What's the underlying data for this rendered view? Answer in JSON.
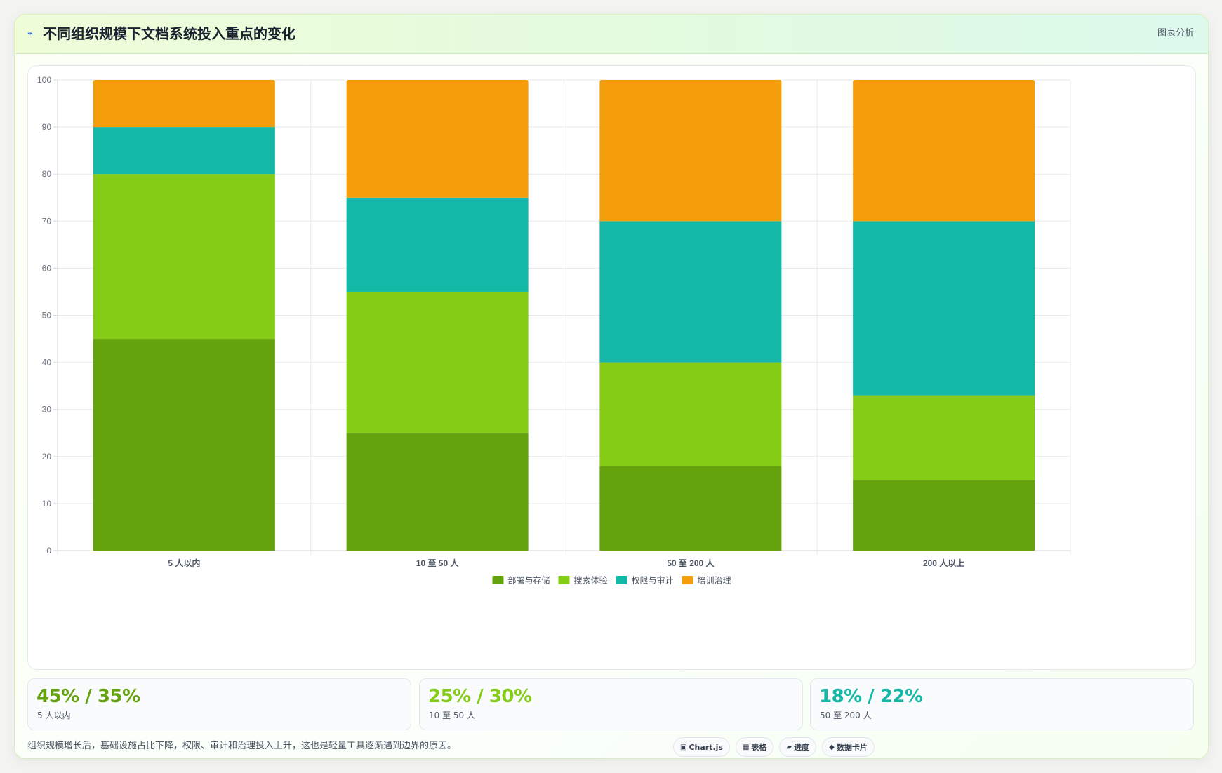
{
  "header": {
    "title": "不同组织规模下文档系统投入重点的变化",
    "tag": "图表分析",
    "title_icon": "pulse-icon"
  },
  "chart_data": {
    "type": "bar",
    "stacked": true,
    "title": "",
    "xlabel": "",
    "ylabel": "",
    "ylim": [
      0,
      100
    ],
    "yticks": [
      0,
      10,
      20,
      30,
      40,
      50,
      60,
      70,
      80,
      90,
      100
    ],
    "grid": true,
    "legend_position": "bottom",
    "categories": [
      "5 人以内",
      "10 至 50 人",
      "50 至 200 人",
      "200 人以上"
    ],
    "series": [
      {
        "name": "部署与存储",
        "color": "#65a30d",
        "values": [
          45,
          25,
          18,
          15
        ]
      },
      {
        "name": "搜索体验",
        "color": "#84cc16",
        "values": [
          35,
          30,
          22,
          18
        ]
      },
      {
        "name": "权限与审计",
        "color": "#14b8a6",
        "values": [
          10,
          20,
          30,
          37
        ]
      },
      {
        "name": "培训治理",
        "color": "#f59e0b",
        "values": [
          10,
          25,
          30,
          30
        ]
      }
    ]
  },
  "stats": [
    {
      "value": "45% / 35%",
      "label": "5 人以内",
      "color": "#65a30d"
    },
    {
      "value": "25% / 30%",
      "label": "10 至 50 人",
      "color": "#84cc16"
    },
    {
      "value": "18% / 22%",
      "label": "50 至 200 人",
      "color": "#14b8a6"
    }
  ],
  "footnote": "组织规模增长后，基础设施占比下降，权限、审计和治理投入上升，这也是轻量工具逐渐遇到边界的原因。",
  "chips": [
    {
      "icon": "▣",
      "icon_name": "chart-icon",
      "label": "Chart.js"
    },
    {
      "icon": "▦",
      "icon_name": "table-icon",
      "label": "表格"
    },
    {
      "icon": "▰",
      "icon_name": "progress-icon",
      "label": "进度"
    },
    {
      "icon": "◆",
      "icon_name": "diamond-icon",
      "label": "数据卡片"
    }
  ]
}
